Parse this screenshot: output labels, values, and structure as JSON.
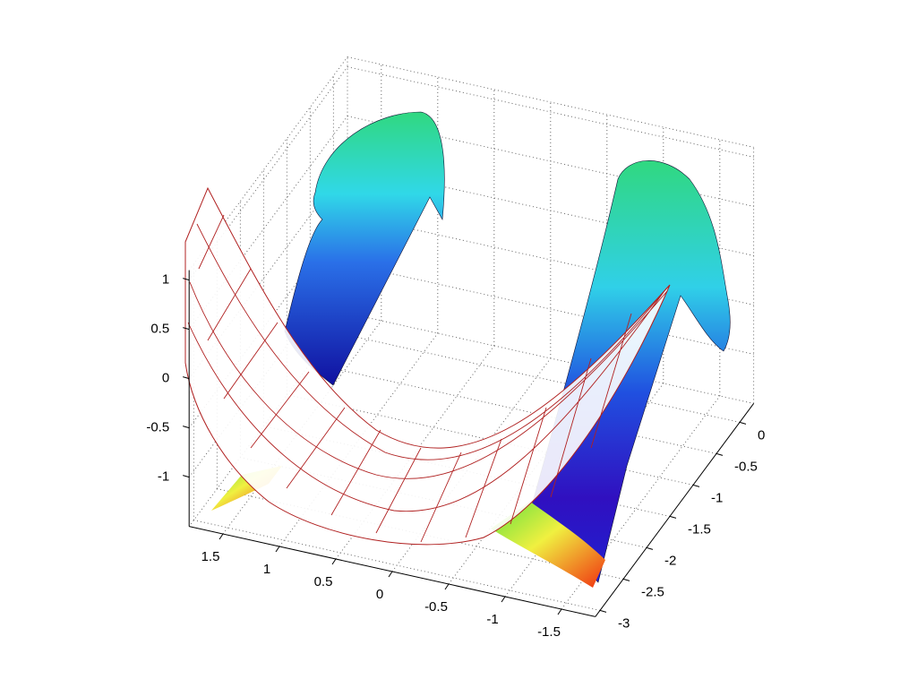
{
  "chart_data": {
    "type": "surface",
    "xlim": [
      -1.8,
      1.8
    ],
    "ylim": [
      -3.1,
      0.3
    ],
    "zlim": [
      -1.5,
      1.1
    ],
    "xticks": [
      1.5,
      1,
      0.5,
      0,
      -0.5,
      -1,
      -1.5
    ],
    "yticks": [
      0,
      -0.5,
      -1,
      -1.5,
      -2,
      -2.5,
      -3
    ],
    "zticks": [
      1,
      0.5,
      0,
      -0.5,
      -1
    ],
    "grid": true
  }
}
